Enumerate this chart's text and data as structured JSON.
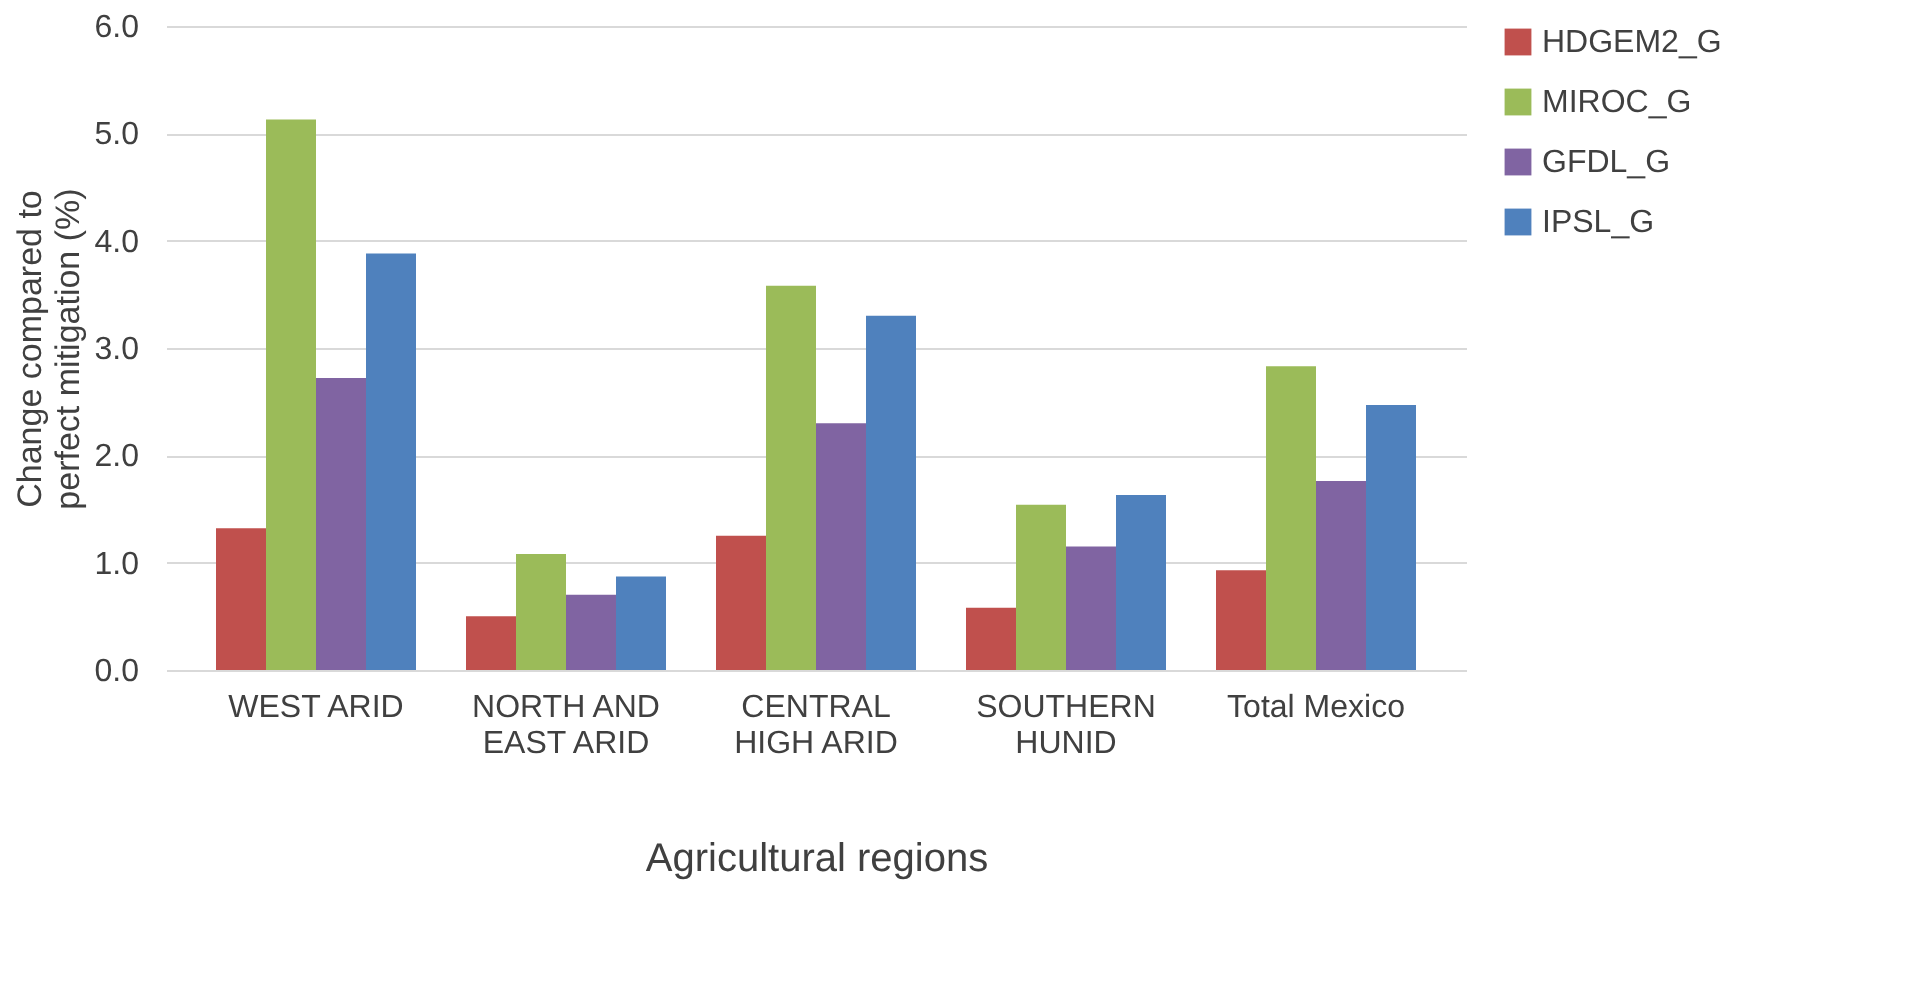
{
  "chart_data": {
    "type": "bar",
    "xlabel": "Agricultural regions",
    "ylabel": "Change compared to perfect mitigation (%)",
    "categories": [
      "WEST ARID",
      "NORTH AND EAST ARID",
      "CENTRAL HIGH ARID",
      "SOUTHERN HUNID",
      "Total Mexico"
    ],
    "series": [
      {
        "name": "HDGEM2_G",
        "color": "#c0504d",
        "values": [
          1.32,
          0.5,
          1.25,
          0.58,
          0.93
        ]
      },
      {
        "name": "MIROC_G",
        "color": "#9bbb59",
        "values": [
          5.13,
          1.08,
          3.58,
          1.54,
          2.83
        ]
      },
      {
        "name": "GFDL_G",
        "color": "#8064a2",
        "values": [
          2.72,
          0.7,
          2.3,
          1.15,
          1.76
        ]
      },
      {
        "name": "IPSL_G",
        "color": "#4f81bd",
        "values": [
          3.88,
          0.87,
          3.3,
          1.63,
          2.47
        ]
      }
    ],
    "ylim": [
      0,
      6
    ],
    "yticks": [
      {
        "value": 0,
        "label": "0.0"
      },
      {
        "value": 1,
        "label": "1.0"
      },
      {
        "value": 2,
        "label": "2.0"
      },
      {
        "value": 3,
        "label": "3.0"
      },
      {
        "value": 4,
        "label": "4.0"
      },
      {
        "value": 5,
        "label": "5.0"
      },
      {
        "value": 6,
        "label": "6.0"
      }
    ],
    "grid": "y",
    "legend": "right"
  }
}
